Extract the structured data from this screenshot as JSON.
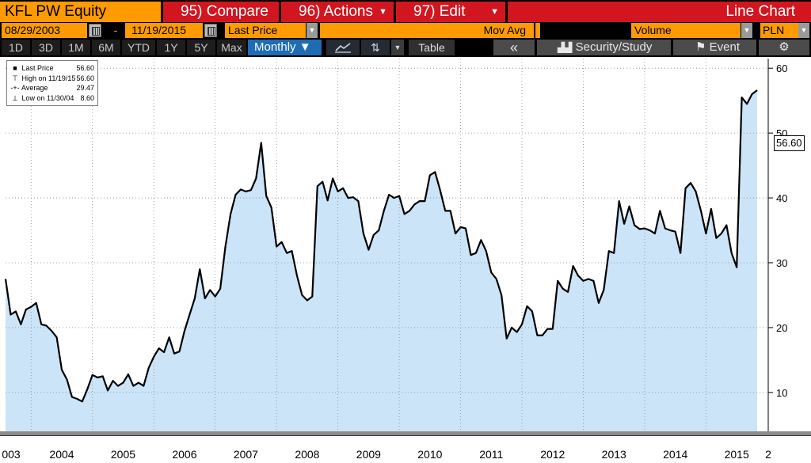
{
  "header": {
    "security": "KFL PW Equity",
    "compare_label": "95) Compare",
    "actions_label": "96) Actions",
    "edit_label": "97) Edit",
    "chart_title": "Line Chart"
  },
  "fields": {
    "start_date": "08/29/2003",
    "date_separator": "-",
    "end_date": "11/19/2015",
    "price_field": "Last Price",
    "mov_avg": "Mov Avg",
    "volume": "Volume",
    "currency": "PLN"
  },
  "toolbar": {
    "ranges": [
      "1D",
      "3D",
      "1M",
      "6M",
      "YTD",
      "1Y",
      "5Y",
      "Max"
    ],
    "period": "Monthly ▼",
    "table_label": "Table",
    "back_label": "«",
    "security_study": "Security/Study",
    "event": "Event",
    "gear": "⚙",
    "icons": [
      "line-style-icon",
      "compare-arrows-icon",
      "security-study-icon",
      "flag-icon",
      "gear-icon"
    ]
  },
  "legend": {
    "rows": [
      {
        "marker": "■",
        "label": "Last Price",
        "value": "56.60"
      },
      {
        "marker": "⊤",
        "label": "High on 11/19/15",
        "value": "56.60"
      },
      {
        "marker": "-+-",
        "label": "Average",
        "value": "29.47"
      },
      {
        "marker": "⊥",
        "label": "Low on 11/30/04",
        "value": "8.60"
      }
    ]
  },
  "last_price_label": "56.60",
  "colors": {
    "accent_orange": "#ff9a00",
    "button_red": "#d1161f",
    "selected_blue": "#1e6cb5",
    "area_fill": "#cce4f7"
  },
  "chart_data": {
    "type": "area",
    "title": "",
    "xlabel": "",
    "ylabel": "",
    "ylim": [
      4,
      61
    ],
    "yticks": [
      10,
      20,
      30,
      40,
      50,
      60
    ],
    "x_tick_labels": [
      "003",
      "2004",
      "2005",
      "2006",
      "2007",
      "2008",
      "2009",
      "2010",
      "2011",
      "2012",
      "2013",
      "2014",
      "2015",
      "2"
    ],
    "grid": true,
    "legend_position": "top-left",
    "series": [
      {
        "name": "Last Price",
        "x": [
          "2003-08",
          "2003-09",
          "2003-10",
          "2003-11",
          "2003-12",
          "2004-01",
          "2004-02",
          "2004-03",
          "2004-04",
          "2004-05",
          "2004-06",
          "2004-07",
          "2004-08",
          "2004-09",
          "2004-10",
          "2004-11",
          "2004-12",
          "2005-01",
          "2005-02",
          "2005-03",
          "2005-04",
          "2005-05",
          "2005-06",
          "2005-07",
          "2005-08",
          "2005-09",
          "2005-10",
          "2005-11",
          "2005-12",
          "2006-01",
          "2006-02",
          "2006-03",
          "2006-04",
          "2006-05",
          "2006-06",
          "2006-07",
          "2006-08",
          "2006-09",
          "2006-10",
          "2006-11",
          "2006-12",
          "2007-01",
          "2007-02",
          "2007-03",
          "2007-04",
          "2007-05",
          "2007-06",
          "2007-07",
          "2007-08",
          "2007-09",
          "2007-10",
          "2007-11",
          "2007-12",
          "2008-01",
          "2008-02",
          "2008-03",
          "2008-04",
          "2008-05",
          "2008-06",
          "2008-07",
          "2008-08",
          "2008-09",
          "2008-10",
          "2008-11",
          "2008-12",
          "2009-01",
          "2009-02",
          "2009-03",
          "2009-04",
          "2009-05",
          "2009-06",
          "2009-07",
          "2009-08",
          "2009-09",
          "2009-10",
          "2009-11",
          "2009-12",
          "2010-01",
          "2010-02",
          "2010-03",
          "2010-04",
          "2010-05",
          "2010-06",
          "2010-07",
          "2010-08",
          "2010-09",
          "2010-10",
          "2010-11",
          "2010-12",
          "2011-01",
          "2011-02",
          "2011-03",
          "2011-04",
          "2011-05",
          "2011-06",
          "2011-07",
          "2011-08",
          "2011-09",
          "2011-10",
          "2011-11",
          "2011-12",
          "2012-01",
          "2012-02",
          "2012-03",
          "2012-04",
          "2012-05",
          "2012-06",
          "2012-07",
          "2012-08",
          "2012-09",
          "2012-10",
          "2012-11",
          "2012-12",
          "2013-01",
          "2013-02",
          "2013-03",
          "2013-04",
          "2013-05",
          "2013-06",
          "2013-07",
          "2013-08",
          "2013-09",
          "2013-10",
          "2013-11",
          "2013-12",
          "2014-01",
          "2014-02",
          "2014-03",
          "2014-04",
          "2014-05",
          "2014-06",
          "2014-07",
          "2014-08",
          "2014-09",
          "2014-10",
          "2014-11",
          "2014-12",
          "2015-01",
          "2015-02",
          "2015-03",
          "2015-04",
          "2015-05",
          "2015-06",
          "2015-07",
          "2015-08",
          "2015-09",
          "2015-10",
          "2015-11"
        ],
        "values": [
          27.5,
          22.0,
          22.5,
          20.5,
          22.8,
          23.2,
          23.8,
          20.5,
          20.3,
          19.5,
          18.5,
          13.5,
          12.0,
          9.3,
          9.0,
          8.6,
          10.5,
          12.7,
          12.3,
          12.5,
          10.3,
          11.8,
          11.0,
          11.5,
          12.8,
          11.0,
          11.5,
          11.0,
          13.8,
          15.5,
          16.8,
          16.2,
          18.5,
          16.0,
          16.3,
          19.5,
          22.0,
          24.5,
          29.0,
          24.5,
          25.8,
          24.8,
          26.0,
          32.5,
          37.5,
          40.5,
          41.3,
          41.0,
          41.2,
          43.0,
          48.5,
          40.3,
          38.5,
          32.5,
          33.2,
          31.5,
          31.8,
          28.0,
          25.0,
          24.2,
          24.8,
          41.8,
          42.5,
          39.6,
          43.0,
          41.0,
          41.5,
          40.0,
          40.1,
          39.5,
          34.5,
          32.0,
          34.3,
          35.0,
          38.0,
          40.5,
          40.0,
          40.3,
          37.5,
          38.0,
          39.0,
          39.5,
          39.5,
          43.5,
          44.0,
          41.2,
          38.0,
          38.0,
          34.5,
          35.5,
          35.3,
          31.2,
          31.5,
          33.5,
          31.8,
          28.5,
          27.5,
          25.0,
          18.3,
          20.0,
          19.3,
          20.5,
          23.3,
          22.5,
          18.8,
          18.8,
          19.8,
          19.8,
          27.2,
          26.0,
          25.5,
          29.5,
          28.0,
          27.2,
          27.5,
          27.2,
          23.8,
          25.8,
          31.8,
          31.5,
          39.5,
          36.0,
          38.7,
          35.8,
          35.2,
          35.3,
          35.0,
          34.5,
          38.0,
          35.3,
          35.0,
          34.8,
          31.5,
          41.5,
          42.3,
          41.0,
          38.0,
          34.5,
          38.3,
          33.8,
          34.5,
          35.8,
          31.5,
          29.3,
          55.5,
          54.5,
          56.0,
          56.6
        ]
      }
    ]
  }
}
